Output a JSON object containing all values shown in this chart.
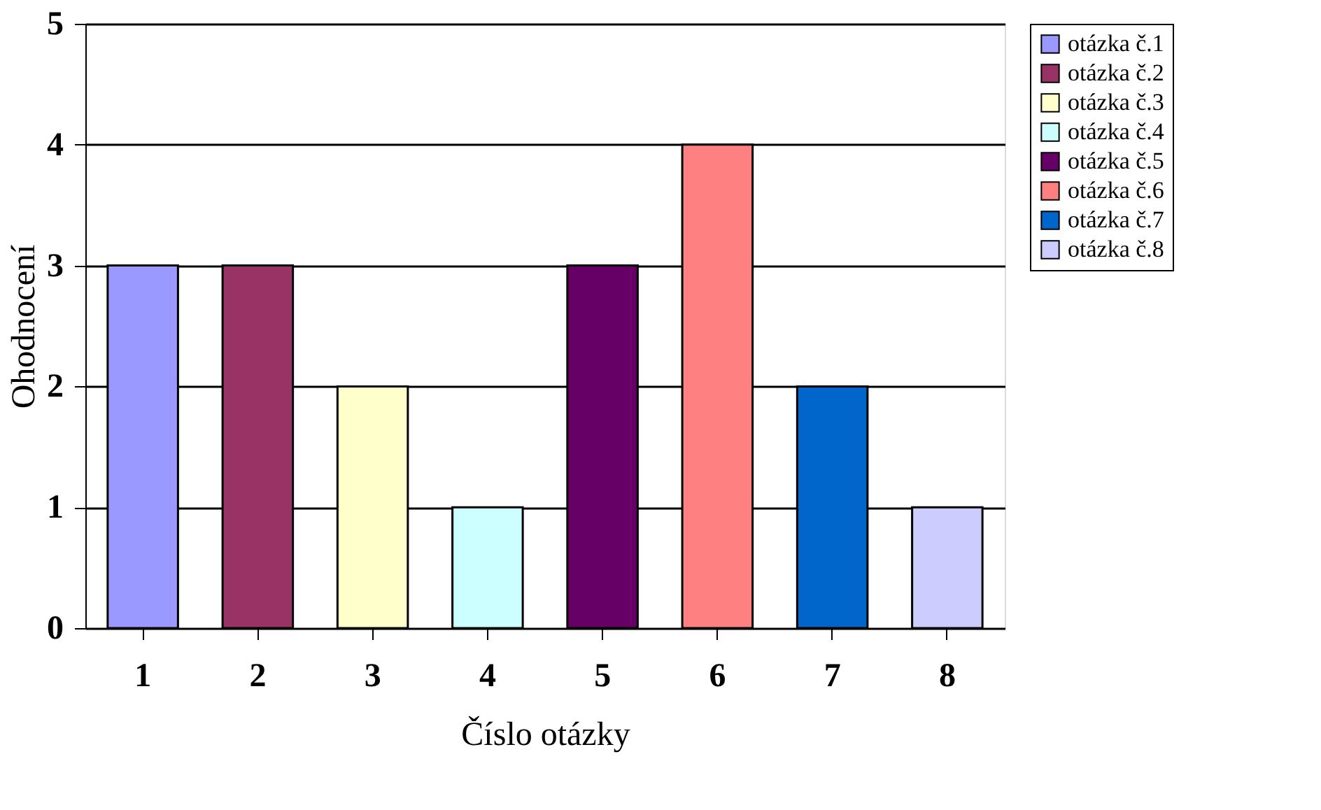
{
  "chart_data": {
    "type": "bar",
    "xlabel": "Číslo otázky",
    "ylabel": "Ohodnocení",
    "categories": [
      "1",
      "2",
      "3",
      "4",
      "5",
      "6",
      "7",
      "8"
    ],
    "series": [
      {
        "name": "otázka č.1",
        "color": "#9999ff",
        "values": [
          3,
          null,
          null,
          null,
          null,
          null,
          null,
          null
        ]
      },
      {
        "name": "otázka č.2",
        "color": "#993366",
        "values": [
          null,
          3,
          null,
          null,
          null,
          null,
          null,
          null
        ]
      },
      {
        "name": "otázka č.3",
        "color": "#ffffcc",
        "values": [
          null,
          null,
          2,
          null,
          null,
          null,
          null,
          null
        ]
      },
      {
        "name": "otázka č.4",
        "color": "#ccffff",
        "values": [
          null,
          null,
          null,
          1,
          null,
          null,
          null,
          null
        ]
      },
      {
        "name": "otázka č.5",
        "color": "#660066",
        "values": [
          null,
          null,
          null,
          null,
          3,
          null,
          null,
          null
        ]
      },
      {
        "name": "otázka č.6",
        "color": "#ff8080",
        "values": [
          null,
          null,
          null,
          null,
          null,
          4,
          null,
          null
        ]
      },
      {
        "name": "otázka č.7",
        "color": "#0066cc",
        "values": [
          null,
          null,
          null,
          null,
          null,
          null,
          2,
          null
        ]
      },
      {
        "name": "otázka č.8",
        "color": "#ccccff",
        "values": [
          null,
          null,
          null,
          null,
          null,
          null,
          null,
          1
        ]
      }
    ],
    "ylim": [
      0,
      5
    ],
    "yticks": [
      0,
      1,
      2,
      3,
      4,
      5
    ],
    "grid": "y",
    "legend": "right"
  }
}
